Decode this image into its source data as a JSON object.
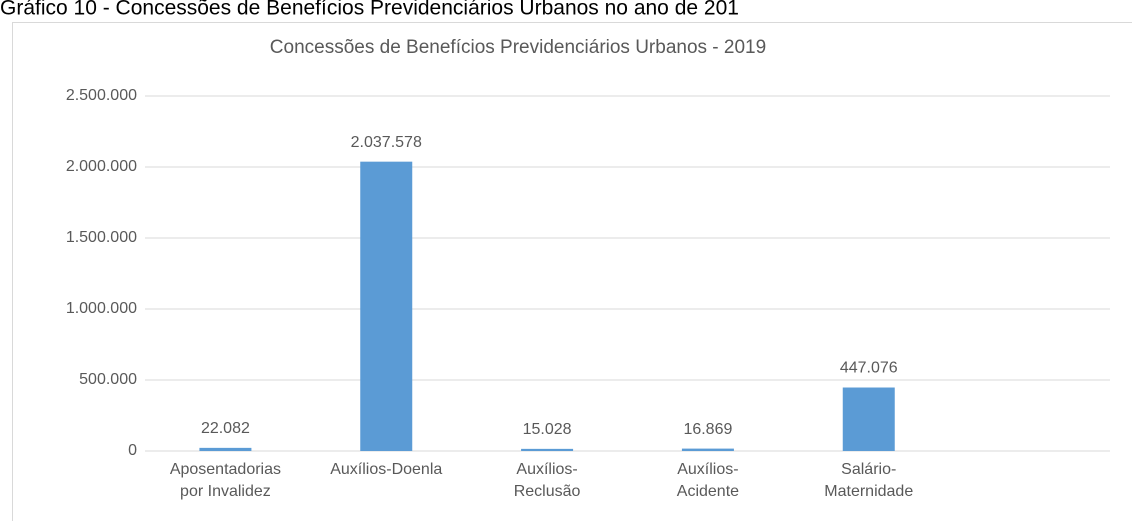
{
  "caption": "Gráfico 10 - Concessões de Benefícios Previdenciários Urbanos no ano de 201",
  "chart_data": {
    "type": "bar",
    "title": "Concessões de Benefícios Previdenciários Urbanos - 2019",
    "categories": [
      [
        "Aposentadorias",
        "por Invalidez"
      ],
      [
        "Auxílios-Doenla"
      ],
      [
        "Auxílios-",
        "Reclusão"
      ],
      [
        "Auxílios-",
        "Acidente"
      ],
      [
        "Salário-",
        "Maternidade"
      ],
      null
    ],
    "values": [
      22082,
      2037578,
      15028,
      16869,
      447076,
      null
    ],
    "value_labels": [
      "22.082",
      "2.037.578",
      "15.028",
      "16.869",
      "447.076",
      null
    ],
    "color": "#5b9bd5",
    "ylim": [
      0,
      2500000
    ],
    "yticks": [
      0,
      {
        "value": 500000,
        "label": "500.000"
      },
      {
        "value": 1000000,
        "label": "1.000.000"
      },
      {
        "value": 1500000,
        "label": "1.500.000"
      },
      {
        "value": 2000000,
        "label": "2.000.000"
      },
      {
        "value": 2500000,
        "label": "2.500.000"
      }
    ],
    "grid": true
  }
}
